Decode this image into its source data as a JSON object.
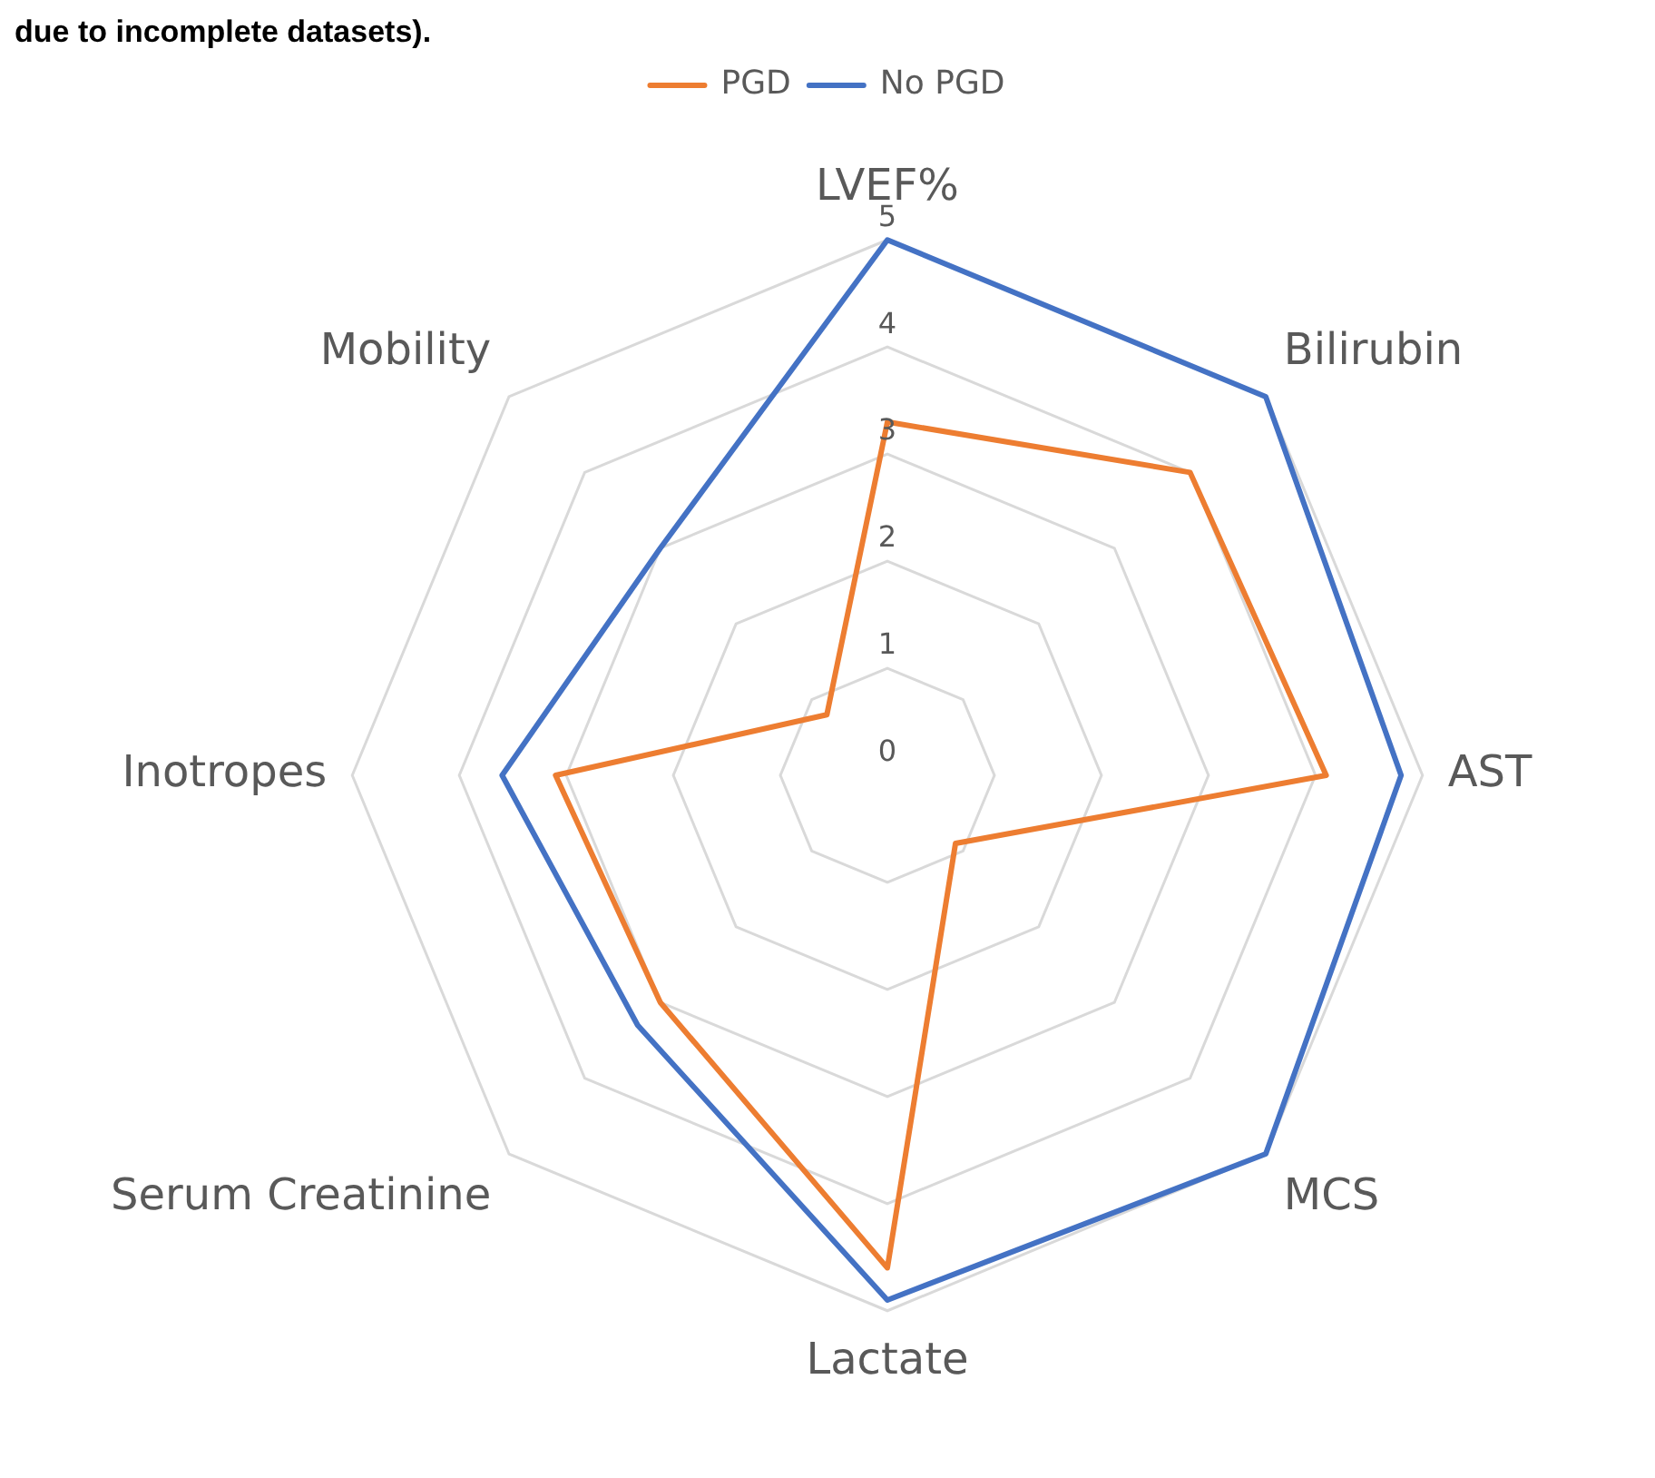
{
  "chart_data": {
    "type": "radar",
    "categories": [
      "LVEF%",
      "Bilirubin",
      "AST",
      "MCS",
      "Lactate",
      "Serum Creatinine",
      "Inotropes",
      "Mobility"
    ],
    "series": [
      {
        "name": "PGD",
        "color": "#ed7d31",
        "values": [
          3.3,
          4.0,
          4.1,
          0.9,
          4.6,
          3.0,
          3.1,
          0.8
        ]
      },
      {
        "name": "No PGD",
        "color": "#4472c4",
        "values": [
          5,
          5,
          4.8,
          5,
          4.9,
          3.3,
          3.6,
          3.0
        ]
      }
    ],
    "ylim": [
      0,
      5
    ],
    "yticks": [
      0,
      1,
      2,
      3,
      4,
      5
    ],
    "grid": true,
    "legend": "top",
    "marker": "none",
    "annotations": [
      "due to incomplete datasets)."
    ]
  }
}
